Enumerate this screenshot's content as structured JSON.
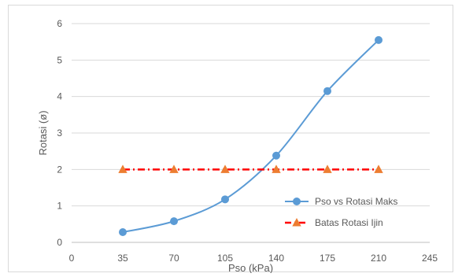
{
  "chart_data": {
    "type": "line",
    "title": "",
    "xlabel": "Pso (kPa)",
    "ylabel": "Rotasi (ø)",
    "xlim": [
      0,
      245
    ],
    "ylim": [
      0,
      6
    ],
    "xticks": [
      0,
      35,
      70,
      105,
      140,
      175,
      210,
      245
    ],
    "yticks": [
      0,
      1,
      2,
      3,
      4,
      5,
      6
    ],
    "grid": "horizontal",
    "legend_position": "bottom-right",
    "series": [
      {
        "name": "Pso vs Rotasi Maks",
        "color": "#5b9bd5",
        "marker": "circle",
        "line_style": "solid",
        "x": [
          35,
          70,
          105,
          140,
          175,
          210
        ],
        "y": [
          0.28,
          0.58,
          1.18,
          2.38,
          4.15,
          5.55
        ]
      },
      {
        "name": "Batas Rotasi Ijin",
        "color": "#ff0000",
        "marker_color": "#ed7d31",
        "marker": "triangle",
        "line_style": "dash-dot",
        "x": [
          35,
          70,
          105,
          140,
          175,
          210
        ],
        "y": [
          2,
          2,
          2,
          2,
          2,
          2
        ]
      }
    ]
  }
}
